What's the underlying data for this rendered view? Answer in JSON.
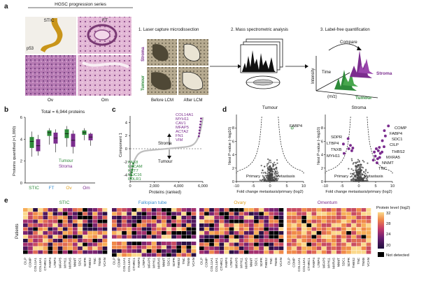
{
  "panels": {
    "a": "a",
    "b": "b",
    "c": "c",
    "d": "d",
    "e": "e"
  },
  "a": {
    "series_title": "HGSC progression series",
    "tiles": [
      "STIC",
      "FT",
      "Ov",
      "Om"
    ],
    "stain": "p53",
    "steps": [
      "1. Laser capture microdissection",
      "2. Mass spectrometric analysis",
      "3. Label-free quantification"
    ],
    "stroma": "Stroma",
    "tumour": "Tumour",
    "before": "Before LCM",
    "after": "After LCM",
    "compare": "Compare",
    "intensity": "Intensity",
    "time": "Time",
    "mz": "(m/z)",
    "stroma_3d": "Stroma",
    "tumour_3d": "Tumour"
  },
  "b": {
    "total": "Total = 6,944 proteins",
    "ylabel": "Proteins quantified (×1,000)",
    "legend": [
      "Tumour",
      "Stroma"
    ],
    "colors": {
      "tumour": "#2e8b3a",
      "stroma": "#7b2d8e"
    }
  },
  "c": {
    "ylabel": "Component 1",
    "xlabel": "Proteins (ranked)",
    "stroma_label": "Stroma",
    "tumour_label": "Tumour",
    "top_genes": [
      "COL14A1",
      "MYH11",
      "CAV1",
      "MFAP5",
      "ACTA2",
      "FN1",
      "VIM"
    ],
    "bottom_genes": [
      "PAX8",
      "EPCAM",
      "KRT7",
      "MUC16",
      "FOLR1"
    ]
  },
  "d": {
    "left_title": "Tumour",
    "right_title": "Stroma",
    "ylabel": "Nest P-value (−log10)",
    "xlabel": "Fold change metastasis/primary (log2)",
    "primary": "Primary",
    "metastasis": "Metastasis",
    "left_gene": "FABP4",
    "right_genes_left": [
      "SDPR",
      "LTBP4",
      "TNXB",
      "MYH11"
    ],
    "right_genes_right": [
      "COMP",
      "FABP4",
      "SDC1",
      "CILP",
      "THBS2",
      "MXRA5",
      "NNMT",
      "TNC"
    ]
  },
  "e": {
    "titles": [
      "STIC",
      "Fallopian tube",
      "Ovary",
      "Omentum"
    ],
    "title_colors": [
      "#2e8b3a",
      "#3a8fd0",
      "#e0a020",
      "#7b2d8e"
    ],
    "ylabel": "Patients",
    "genes": [
      "CILP",
      "COMP",
      "COL11A1",
      "COL14A1",
      "CTHRC1",
      "FABP4",
      "LTBP4",
      "MFAP5",
      "MYH11",
      "MXRA5",
      "NNMT",
      "SDC1",
      "SDPR",
      "THBS2",
      "TNC",
      "TNXB",
      "VCAN"
    ],
    "colorbar_title": "Protein level (log2)",
    "colorbar_ticks": [
      "32",
      "28",
      "24",
      "20"
    ],
    "not_detected": "Not detected"
  },
  "chart_data": [
    {
      "type": "box",
      "panel": "b",
      "title": "Total = 6,944 proteins",
      "ylabel": "Proteins quantified (×1,000)",
      "ylim": [
        0,
        6
      ],
      "categories": [
        "STIC",
        "FT",
        "Ov",
        "Om"
      ],
      "series": [
        {
          "name": "Tumour",
          "median": [
            3.8,
            4.6,
            4.5,
            4.6
          ],
          "q1": [
            3.2,
            4.3,
            4.1,
            4.4
          ],
          "q3": [
            4.2,
            4.8,
            4.9,
            4.8
          ],
          "min": [
            2.4,
            3.5,
            3.3,
            3.9
          ],
          "max": [
            4.7,
            5.0,
            5.2,
            5.0
          ]
        },
        {
          "name": "Stroma",
          "median": [
            3.4,
            4.1,
            3.9,
            4.2
          ],
          "q1": [
            2.9,
            3.6,
            3.3,
            3.9
          ],
          "q3": [
            4.0,
            4.6,
            4.5,
            4.5
          ],
          "min": [
            2.5,
            2.8,
            2.7,
            3.4
          ],
          "max": [
            4.4,
            4.9,
            4.8,
            4.6
          ]
        }
      ]
    },
    {
      "type": "line",
      "panel": "c",
      "ylabel": "Component 1",
      "xlabel": "Proteins (ranked)",
      "xlim": [
        0,
        6000
      ],
      "ylim": [
        -5,
        5
      ],
      "xticks": [
        0,
        2000,
        4000,
        6000
      ],
      "yticks": [
        -4,
        -2,
        0,
        2,
        4
      ],
      "xticklabels": [
        "0",
        "2,000",
        "4,000",
        "6,000"
      ]
    },
    {
      "type": "scatter",
      "panel": "d-left",
      "title": "Tumour",
      "xlim": [
        -10,
        10
      ],
      "ylim": [
        0,
        10
      ],
      "xticks": [
        -10,
        -5,
        0,
        5,
        10
      ],
      "yticks": [
        0,
        2,
        4,
        6,
        8
      ]
    },
    {
      "type": "scatter",
      "panel": "d-right",
      "title": "Stroma",
      "xlim": [
        -10,
        10
      ],
      "ylim": [
        0,
        10
      ],
      "xticks": [
        -10,
        -5,
        0,
        5,
        10
      ],
      "yticks": [
        0,
        2,
        4,
        6,
        8
      ]
    },
    {
      "type": "heatmap",
      "panel": "e",
      "colorbar_range": [
        18,
        33
      ]
    }
  ]
}
